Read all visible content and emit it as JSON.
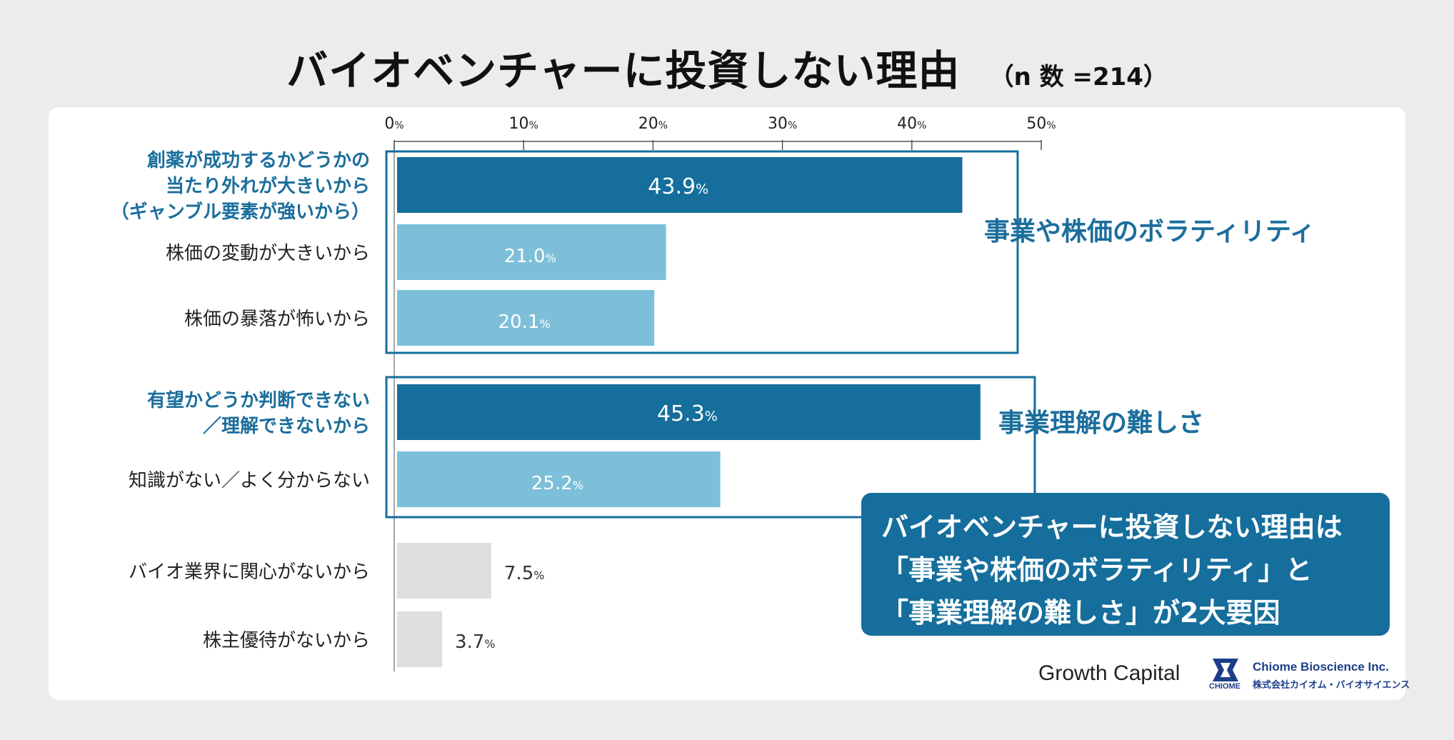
{
  "title": "バイオベンチャーに投資しない理由",
  "sample_size": "（n 数 =214）",
  "chart_data": {
    "type": "bar",
    "orientation": "horizontal",
    "title": "バイオベンチャーに投資しない理由",
    "xlim": [
      0,
      50
    ],
    "ticks": [
      {
        "value": 0,
        "num": "0",
        "unit": "%"
      },
      {
        "value": 10,
        "num": "10",
        "unit": "%"
      },
      {
        "value": 20,
        "num": "20",
        "unit": "%"
      },
      {
        "value": 30,
        "num": "30",
        "unit": "%"
      },
      {
        "value": 40,
        "num": "40",
        "unit": "%"
      },
      {
        "value": 50,
        "num": "50",
        "unit": "%"
      }
    ],
    "bars": [
      {
        "label": [
          "創薬が成功するかどうかの",
          "当たり外れが大きいから",
          "（ギャンブル要素が強いから）"
        ],
        "value": 43.9,
        "value_text": "43.9",
        "unit": "%",
        "style": "dark"
      },
      {
        "label": [
          "株価の変動が大きいから"
        ],
        "value": 21.0,
        "value_text": "21.0",
        "unit": "%",
        "style": "light"
      },
      {
        "label": [
          "株価の暴落が怖いから"
        ],
        "value": 20.1,
        "value_text": "20.1",
        "unit": "%",
        "style": "light"
      },
      {
        "label": [
          "有望かどうか判断できない",
          "／理解できないから"
        ],
        "value": 45.3,
        "value_text": "45.3",
        "unit": "%",
        "style": "dark"
      },
      {
        "label": [
          "知識がない／よく分からない"
        ],
        "value": 25.2,
        "value_text": "25.2",
        "unit": "%",
        "style": "light"
      },
      {
        "label": [
          "バイオ業界に関心がないから"
        ],
        "value": 7.5,
        "value_text": "7.5",
        "unit": "%",
        "style": "gray"
      },
      {
        "label": [
          "株主優待がないから"
        ],
        "value": 3.7,
        "value_text": "3.7",
        "unit": "%",
        "style": "gray"
      }
    ],
    "groups": [
      {
        "label": "事業や株価のボラティリティ",
        "bars": [
          0,
          1,
          2
        ]
      },
      {
        "label": "事業理解の難しさ",
        "bars": [
          3,
          4
        ]
      }
    ]
  },
  "callout": {
    "lines": [
      "バイオベンチャーに投資しない理由は",
      "「事業や株価のボラティリティ」と",
      "「事業理解の難しさ」が2大要因"
    ]
  },
  "logos": {
    "growth_capital": "Growth Capital",
    "chiome_mark": "CHIOME",
    "chiome_en": "Chiome Bioscience Inc.",
    "chiome_jp": "株式会社カイオム・バイオサイエンス"
  },
  "colors": {
    "dark": "#156e9c",
    "light": "#7dbfd9",
    "gray": "#dcdedf",
    "accent_text": "#1b6e9c"
  }
}
